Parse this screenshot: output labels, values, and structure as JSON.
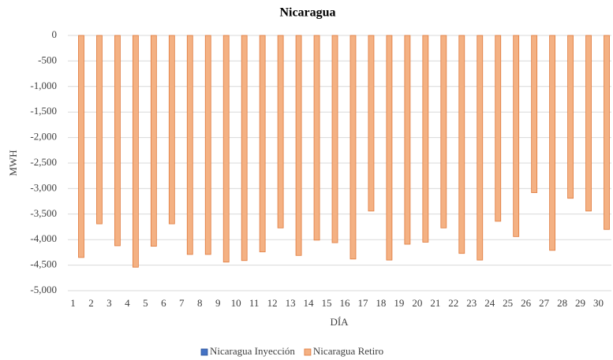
{
  "chart_data": {
    "type": "bar",
    "title": "Nicaragua",
    "x_label": "DÍA",
    "y_label": "MWH",
    "categories": [
      "1",
      "2",
      "3",
      "4",
      "5",
      "6",
      "7",
      "8",
      "9",
      "10",
      "11",
      "12",
      "13",
      "14",
      "15",
      "16",
      "17",
      "18",
      "19",
      "20",
      "21",
      "22",
      "23",
      "24",
      "25",
      "26",
      "27",
      "28",
      "29",
      "30"
    ],
    "series": [
      {
        "name": "Nicaragua Inyección",
        "color": "#4472c4",
        "values": [
          0,
          0,
          0,
          0,
          0,
          0,
          0,
          0,
          0,
          0,
          0,
          0,
          0,
          0,
          0,
          0,
          0,
          0,
          0,
          0,
          0,
          0,
          0,
          0,
          0,
          0,
          0,
          0,
          0,
          0
        ]
      },
      {
        "name": "Nicaragua Retiro",
        "color": "#f4b183",
        "values": [
          -4350,
          -3690,
          -4120,
          -4540,
          -4130,
          -3690,
          -4290,
          -4290,
          -4440,
          -4410,
          -4240,
          -3770,
          -4310,
          -4010,
          -4060,
          -4380,
          -3440,
          -4400,
          -4090,
          -4050,
          -3770,
          -4270,
          -4400,
          -3640,
          -3940,
          -3080,
          -4210,
          -3190,
          -3440,
          -3800
        ]
      }
    ],
    "ylim": [
      -5000,
      0
    ],
    "yticks": [
      0,
      -500,
      {
        "value": -1000,
        "label": "-1,000"
      },
      {
        "value": -1500,
        "label": "-1,500"
      },
      {
        "value": -2000,
        "label": "-2,000"
      },
      {
        "value": -2500,
        "label": "-2,500"
      },
      {
        "value": -3000,
        "label": "-3,000"
      },
      {
        "value": -3500,
        "label": "-3,500"
      },
      {
        "value": -4000,
        "label": "-4,000"
      },
      {
        "value": -4500,
        "label": "-4,500"
      },
      {
        "value": -5000,
        "label": "-5,000"
      }
    ],
    "grid": true,
    "legend": "bottom"
  }
}
